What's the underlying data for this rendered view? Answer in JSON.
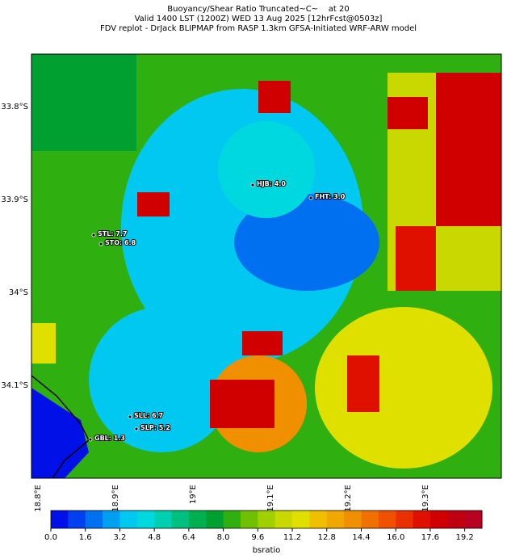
{
  "title_lines": [
    "Buoyancy/Shear Ratio Truncated~C~    at 20",
    "Valid 1400 LST (1200Z) WED 13 Aug 2025 [12hrFcst@0503z]",
    "FDV replot - DrJack BLIPMAP from RASP 1.3km GFSA-Initiated WRF-ARW model"
  ],
  "lat_labels": [
    "33.8°S",
    "33.9°S",
    "34°S",
    "34.1°S"
  ],
  "lon_labels": [
    "18.8°E",
    "18.9°E",
    "19°E",
    "19.1°E",
    "19.2°E",
    "19.3°E"
  ],
  "stations": [
    {
      "label": "HJB: 4.0"
    },
    {
      "label": "FHT: 3.0"
    },
    {
      "label": "STL: 7.7"
    },
    {
      "label": "STO: 6.8"
    },
    {
      "label": "SLL: 6.7"
    },
    {
      "label": "SLP: 5.2"
    },
    {
      "label": "GBL: 1.3"
    }
  ],
  "colorbar": {
    "label": "bsratio",
    "lim": [
      0,
      20
    ],
    "ticks": [
      {
        "value": 0,
        "label": "0.0"
      },
      {
        "value": 1.6,
        "label": "1.6"
      },
      {
        "value": 3.2,
        "label": "3.2"
      },
      {
        "value": 4.8,
        "label": "4.8"
      },
      {
        "value": 6.4,
        "label": "6.4"
      },
      {
        "value": 8,
        "label": "8.0"
      },
      {
        "value": 9.6,
        "label": "9.6"
      },
      {
        "value": 11.2,
        "label": "11.2"
      },
      {
        "value": 12.8,
        "label": "12.8"
      },
      {
        "value": 14.4,
        "label": "14.4"
      },
      {
        "value": 16,
        "label": "16.0"
      },
      {
        "value": 17.6,
        "label": "17.6"
      },
      {
        "value": 19.2,
        "label": "19.2"
      }
    ],
    "colors": [
      "#0010e6",
      "#0040ee",
      "#0070f0",
      "#00a0f0",
      "#00c8f0",
      "#00d8e0",
      "#00d0b0",
      "#00c080",
      "#00b050",
      "#00a030",
      "#30b010",
      "#70c000",
      "#a0d000",
      "#c8d800",
      "#e0e000",
      "#f0c000",
      "#f0a800",
      "#f09000",
      "#f07000",
      "#f05000",
      "#e83000",
      "#e01000",
      "#d00000",
      "#c00010",
      "#b80020"
    ]
  }
}
